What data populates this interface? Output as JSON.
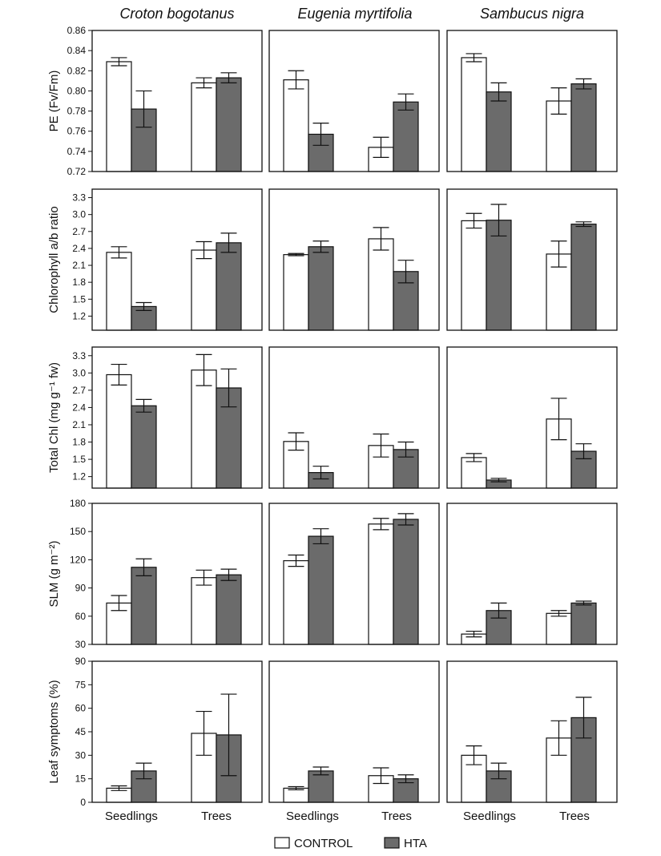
{
  "legend": [
    {
      "name": "CONTROL",
      "color": "#ffffff"
    },
    {
      "name": "HTA",
      "color": "#6b6b6b"
    }
  ],
  "categories": [
    "Seedlings",
    "Trees"
  ],
  "species": [
    "Croton bogotanus",
    "Eugenia myrtifolia",
    "Sambucus nigra"
  ],
  "chart_data": [
    {
      "type": "bar",
      "ylabel": "PE (Fv/Fm)",
      "ylim": [
        0.72,
        0.86
      ],
      "yticks": [
        "0.72",
        "0.74",
        "0.76",
        "0.78",
        "0.80",
        "0.82",
        "0.84",
        "0.86"
      ],
      "panels": [
        {
          "species": "Croton bogotanus",
          "categories": [
            "Seedlings",
            "Trees"
          ],
          "series": [
            {
              "name": "CONTROL",
              "values": [
                0.829,
                0.808
              ],
              "errors": [
                0.004,
                0.005
              ]
            },
            {
              "name": "HTA",
              "values": [
                0.782,
                0.813
              ],
              "errors": [
                0.018,
                0.005
              ]
            }
          ]
        },
        {
          "species": "Eugenia myrtifolia",
          "categories": [
            "Seedlings",
            "Trees"
          ],
          "series": [
            {
              "name": "CONTROL",
              "values": [
                0.811,
                0.744
              ],
              "errors": [
                0.009,
                0.01
              ]
            },
            {
              "name": "HTA",
              "values": [
                0.757,
                0.789
              ],
              "errors": [
                0.011,
                0.008
              ]
            }
          ]
        },
        {
          "species": "Sambucus nigra",
          "categories": [
            "Seedlings",
            "Trees"
          ],
          "series": [
            {
              "name": "CONTROL",
              "values": [
                0.833,
                0.79
              ],
              "errors": [
                0.004,
                0.013
              ]
            },
            {
              "name": "HTA",
              "values": [
                0.799,
                0.807
              ],
              "errors": [
                0.009,
                0.005
              ]
            }
          ]
        }
      ]
    },
    {
      "type": "bar",
      "ylabel": "Chlorophyll a/b ratio",
      "ylim": [
        0.95,
        3.45
      ],
      "yticks": [
        "1.2",
        "1.5",
        "1.8",
        "2.1",
        "2.4",
        "2.7",
        "3.0",
        "3.3"
      ],
      "panels": [
        {
          "species": "Croton bogotanus",
          "categories": [
            "Seedlings",
            "Trees"
          ],
          "series": [
            {
              "name": "CONTROL",
              "values": [
                2.33,
                2.37
              ],
              "errors": [
                0.1,
                0.15
              ]
            },
            {
              "name": "HTA",
              "values": [
                1.37,
                2.5
              ],
              "errors": [
                0.07,
                0.17
              ]
            }
          ]
        },
        {
          "species": "Eugenia myrtifolia",
          "categories": [
            "Seedlings",
            "Trees"
          ],
          "series": [
            {
              "name": "CONTROL",
              "values": [
                2.29,
                2.57
              ],
              "errors": [
                0.02,
                0.2
              ]
            },
            {
              "name": "HTA",
              "values": [
                2.43,
                1.99
              ],
              "errors": [
                0.1,
                0.2
              ]
            }
          ]
        },
        {
          "species": "Sambucus nigra",
          "categories": [
            "Seedlings",
            "Trees"
          ],
          "series": [
            {
              "name": "CONTROL",
              "values": [
                2.89,
                2.3
              ],
              "errors": [
                0.13,
                0.23
              ]
            },
            {
              "name": "HTA",
              "values": [
                2.9,
                2.83
              ],
              "errors": [
                0.28,
                0.04
              ]
            }
          ]
        }
      ]
    },
    {
      "type": "bar",
      "ylabel": "Total Chl (mg g⁻¹ fw)",
      "ylim": [
        1.0,
        3.45
      ],
      "yticks": [
        "1.2",
        "1.5",
        "1.8",
        "2.1",
        "2.4",
        "2.7",
        "3.0",
        "3.3"
      ],
      "panels": [
        {
          "species": "Croton bogotanus",
          "categories": [
            "Seedlings",
            "Trees"
          ],
          "series": [
            {
              "name": "CONTROL",
              "values": [
                2.97,
                3.05
              ],
              "errors": [
                0.18,
                0.27
              ]
            },
            {
              "name": "HTA",
              "values": [
                2.43,
                2.74
              ],
              "errors": [
                0.11,
                0.33
              ]
            }
          ]
        },
        {
          "species": "Eugenia myrtifolia",
          "categories": [
            "Seedlings",
            "Trees"
          ],
          "series": [
            {
              "name": "CONTROL",
              "values": [
                1.81,
                1.74
              ],
              "errors": [
                0.15,
                0.2
              ]
            },
            {
              "name": "HTA",
              "values": [
                1.27,
                1.67
              ],
              "errors": [
                0.11,
                0.13
              ]
            }
          ]
        },
        {
          "species": "Sambucus nigra",
          "categories": [
            "Seedlings",
            "Trees"
          ],
          "series": [
            {
              "name": "CONTROL",
              "values": [
                1.53,
                2.2
              ],
              "errors": [
                0.07,
                0.36
              ]
            },
            {
              "name": "HTA",
              "values": [
                1.14,
                1.64
              ],
              "errors": [
                0.03,
                0.13
              ]
            }
          ]
        }
      ]
    },
    {
      "type": "bar",
      "ylabel": "SLM (g m⁻²)",
      "ylim": [
        30,
        180
      ],
      "yticks": [
        "30",
        "60",
        "90",
        "120",
        "150",
        "180"
      ],
      "panels": [
        {
          "species": "Croton bogotanus",
          "categories": [
            "Seedlings",
            "Trees"
          ],
          "series": [
            {
              "name": "CONTROL",
              "values": [
                74,
                101
              ],
              "errors": [
                8,
                8
              ]
            },
            {
              "name": "HTA",
              "values": [
                112,
                104
              ],
              "errors": [
                9,
                6
              ]
            }
          ]
        },
        {
          "species": "Eugenia myrtifolia",
          "categories": [
            "Seedlings",
            "Trees"
          ],
          "series": [
            {
              "name": "CONTROL",
              "values": [
                119,
                158
              ],
              "errors": [
                6,
                6
              ]
            },
            {
              "name": "HTA",
              "values": [
                145,
                163
              ],
              "errors": [
                8,
                6
              ]
            }
          ]
        },
        {
          "species": "Sambucus nigra",
          "categories": [
            "Seedlings",
            "Trees"
          ],
          "series": [
            {
              "name": "CONTROL",
              "values": [
                41,
                63
              ],
              "errors": [
                3,
                3
              ]
            },
            {
              "name": "HTA",
              "values": [
                66,
                74
              ],
              "errors": [
                8,
                2
              ]
            }
          ]
        }
      ]
    },
    {
      "type": "bar",
      "ylabel": "Leaf symptoms (%)",
      "ylim": [
        0,
        90
      ],
      "yticks": [
        "0",
        "15",
        "30",
        "45",
        "60",
        "75",
        "90"
      ],
      "panels": [
        {
          "species": "Croton bogotanus",
          "categories": [
            "Seedlings",
            "Trees"
          ],
          "series": [
            {
              "name": "CONTROL",
              "values": [
                9,
                44
              ],
              "errors": [
                1.5,
                14
              ]
            },
            {
              "name": "HTA",
              "values": [
                20,
                43
              ],
              "errors": [
                5,
                26
              ]
            }
          ]
        },
        {
          "species": "Eugenia myrtifolia",
          "categories": [
            "Seedlings",
            "Trees"
          ],
          "series": [
            {
              "name": "CONTROL",
              "values": [
                9,
                17
              ],
              "errors": [
                1,
                5
              ]
            },
            {
              "name": "HTA",
              "values": [
                20,
                15
              ],
              "errors": [
                2.5,
                2.5
              ]
            }
          ]
        },
        {
          "species": "Sambucus nigra",
          "categories": [
            "Seedlings",
            "Trees"
          ],
          "series": [
            {
              "name": "CONTROL",
              "values": [
                30,
                41
              ],
              "errors": [
                6,
                11
              ]
            },
            {
              "name": "HTA",
              "values": [
                20,
                54
              ],
              "errors": [
                5,
                13
              ]
            }
          ]
        }
      ]
    }
  ]
}
